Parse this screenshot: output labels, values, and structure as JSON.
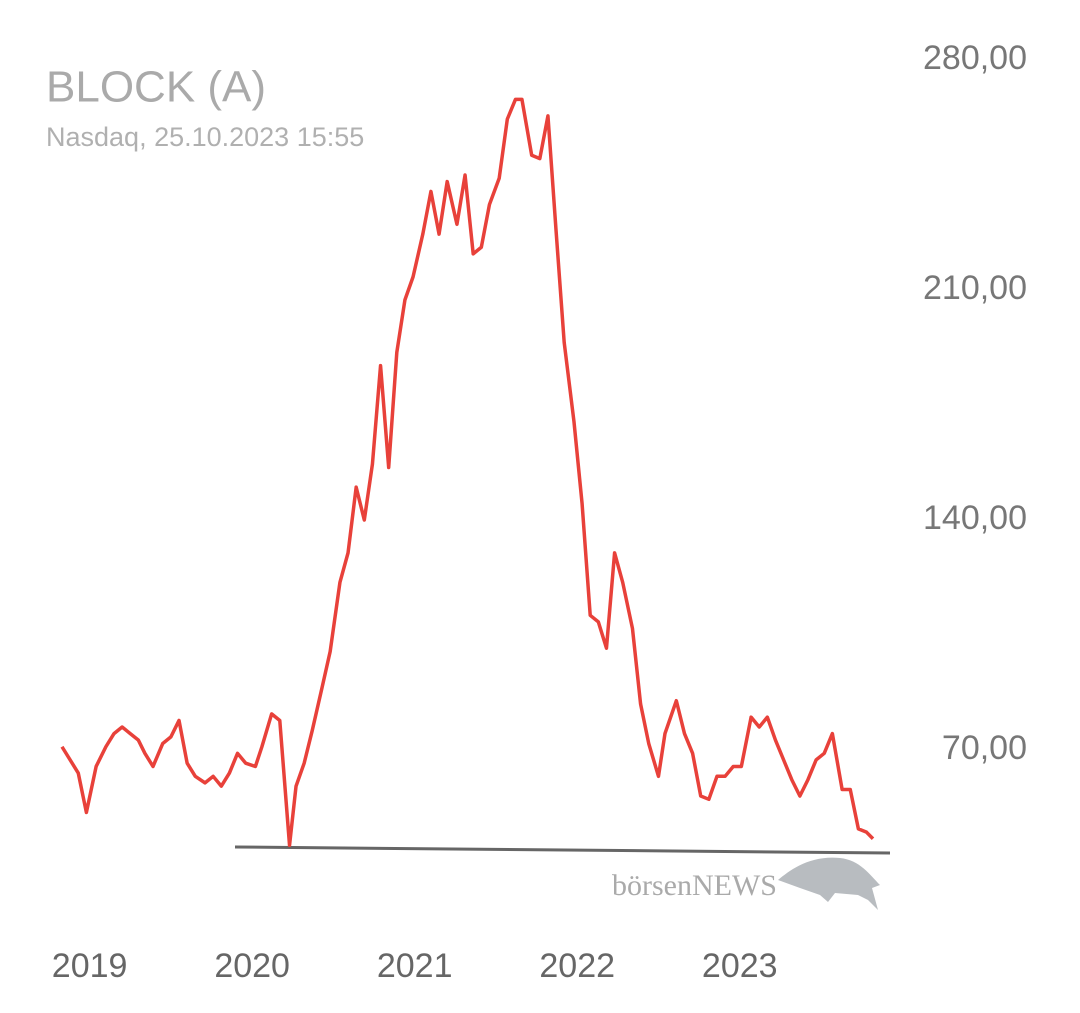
{
  "chart_data": {
    "type": "line",
    "title": "BLOCK (A)",
    "subtitle": "Nasdaq, 25.10.2023 15:55",
    "logo": "börsenNEWS",
    "xlim": [
      2018.83,
      2023.82
    ],
    "xticks": [
      2019,
      2020,
      2021,
      2022,
      2023
    ],
    "ylim": [
      40,
      280
    ],
    "yticks": [
      {
        "value": 70,
        "label": "70,00"
      },
      {
        "value": 140,
        "label": "140,00"
      },
      {
        "value": 210,
        "label": "210,00"
      },
      {
        "value": 280,
        "label": "280,00"
      }
    ],
    "x": [
      2018.83,
      2018.93,
      2018.98,
      2019.04,
      2019.1,
      2019.15,
      2019.2,
      2019.25,
      2019.3,
      2019.34,
      2019.39,
      2019.45,
      2019.5,
      2019.55,
      2019.6,
      2019.65,
      2019.71,
      2019.76,
      2019.81,
      2019.86,
      2019.91,
      2019.96,
      2020.02,
      2020.06,
      2020.12,
      2020.17,
      2020.23,
      2020.27,
      2020.32,
      2020.37,
      2020.43,
      2020.48,
      2020.54,
      2020.59,
      2020.64,
      2020.69,
      2020.74,
      2020.79,
      2020.84,
      2020.89,
      2020.94,
      2020.99,
      2021.05,
      2021.1,
      2021.15,
      2021.2,
      2021.26,
      2021.31,
      2021.36,
      2021.41,
      2021.46,
      2021.52,
      2021.57,
      2021.62,
      2021.66,
      2021.72,
      2021.77,
      2021.82,
      2021.87,
      2021.92,
      2021.98,
      2022.03,
      2022.08,
      2022.13,
      2022.18,
      2022.23,
      2022.28,
      2022.34,
      2022.39,
      2022.44,
      2022.5,
      2022.54,
      2022.61,
      2022.66,
      2022.71,
      2022.76,
      2022.81,
      2022.86,
      2022.91,
      2022.96,
      2023.01,
      2023.07,
      2023.12,
      2023.17,
      2023.22,
      2023.27,
      2023.32,
      2023.37,
      2023.42,
      2023.47,
      2023.52,
      2023.57,
      2023.63,
      2023.68,
      2023.73,
      2023.78,
      2023.82
    ],
    "series": [
      {
        "color": "#e8413a",
        "values": [
          71,
          63,
          51,
          65,
          71,
          75,
          77,
          75,
          73,
          69,
          65,
          72,
          74,
          79,
          66,
          62,
          60,
          62,
          59,
          63,
          69,
          66,
          65,
          71,
          81,
          79,
          41,
          59,
          66,
          76,
          89,
          100,
          121,
          130,
          150,
          140,
          157,
          187,
          156,
          191,
          207,
          214,
          227,
          240,
          227,
          243,
          230,
          245,
          221,
          223,
          236,
          244,
          262,
          268,
          268,
          251,
          250,
          263,
          228,
          194,
          170,
          145,
          111,
          109,
          101,
          130,
          121,
          107,
          84,
          72,
          62,
          75,
          85,
          75,
          69,
          56,
          55,
          62,
          62,
          65,
          65,
          80,
          77,
          80,
          73,
          67,
          61,
          56,
          61,
          67,
          69,
          75,
          58,
          58,
          46,
          45,
          43
        ]
      }
    ]
  }
}
